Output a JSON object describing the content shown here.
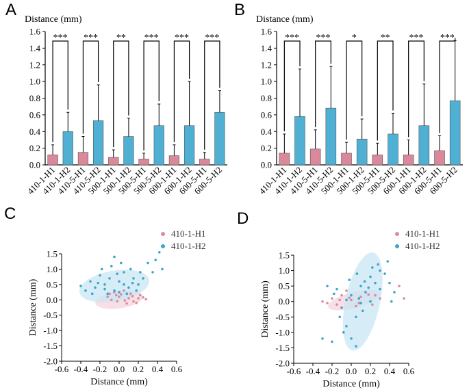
{
  "colors": {
    "h1": "#d9899a",
    "h2": "#4fb0d3",
    "h1_dot": "#d98ca0",
    "h2_dot": "#3aa7c9",
    "h1_ellipse": "#f6d3dc",
    "h2_ellipse": "#c8e6f4"
  },
  "chart_data": [
    {
      "panel": "A",
      "type": "bar",
      "ylabel": "Distance (mm)",
      "ylim": [
        0,
        1.6
      ],
      "yticks": [
        "0.0",
        "0.2",
        "0.4",
        "0.6",
        "0.8",
        "1.0",
        "1.2",
        "1.4",
        "1.6"
      ],
      "categories": [
        "410-1-H1",
        "410-1-H2",
        "410-5-H1",
        "410-5-H2",
        "500-1-H1",
        "500-1-H2",
        "500-5-H1",
        "500-5-H2",
        "600-1-H1",
        "600-1-H2",
        "600-5-H1",
        "600-5-H2"
      ],
      "values": [
        0.12,
        0.4,
        0.15,
        0.53,
        0.09,
        0.34,
        0.07,
        0.47,
        0.11,
        0.47,
        0.07,
        0.63
      ],
      "errors": [
        0.12,
        0.23,
        0.19,
        0.43,
        0.09,
        0.22,
        0.07,
        0.26,
        0.13,
        0.53,
        0.08,
        0.26
      ],
      "significance": [
        "***",
        "***",
        "**",
        "***",
        "***",
        "***"
      ]
    },
    {
      "panel": "B",
      "type": "bar",
      "ylabel": "Distance (mm)",
      "ylim": [
        0,
        1.6
      ],
      "yticks": [
        "0.0",
        "0.2",
        "0.4",
        "0.6",
        "0.8",
        "1.0",
        "1.2",
        "1.4",
        "1.6"
      ],
      "categories": [
        "410-1-H1",
        "410-1-H2",
        "410-5-H1",
        "410-5-H2",
        "500-1-H1",
        "500-1-H2",
        "500-5-H1",
        "500-5-H2",
        "600-1-H1",
        "600-1-H2",
        "600-5-H1",
        "600-5-H2"
      ],
      "values": [
        0.14,
        0.58,
        0.19,
        0.68,
        0.14,
        0.31,
        0.12,
        0.37,
        0.12,
        0.47,
        0.17,
        0.77
      ],
      "errors": [
        0.23,
        0.57,
        0.23,
        0.5,
        0.13,
        0.24,
        0.14,
        0.25,
        0.18,
        0.5,
        0.18,
        0.72
      ],
      "significance": [
        "***",
        "***",
        "*",
        "**",
        "***",
        "***"
      ]
    },
    {
      "panel": "C",
      "type": "scatter",
      "xlabel": "Distance (mm)",
      "ylabel": "Distance (mm)",
      "xlim": [
        -0.6,
        0.6
      ],
      "ylim": [
        -2.0,
        1.5
      ],
      "xticks": [
        "-0.6",
        "-0.4",
        "-0.2",
        "0.0",
        "0.2",
        "0.4",
        "0.6"
      ],
      "yticks": [
        "1.5",
        "1.0",
        "0.5",
        "0.0",
        "-0.5",
        "-1.0",
        "-1.5",
        "-2.0"
      ],
      "legend": [
        "410-1-H1",
        "410-1-H2"
      ],
      "ellipses": [
        {
          "series": "410-1-H1",
          "cx": 0.0,
          "cy": 0.0,
          "rx": 0.25,
          "ry": 0.28,
          "angle": -8
        },
        {
          "series": "410-1-H2",
          "cx": -0.05,
          "cy": 0.45,
          "rx": 0.37,
          "ry": 0.5,
          "angle": -10
        }
      ],
      "series": [
        {
          "name": "410-1-H1",
          "points": [
            [
              -0.05,
              0.25
            ],
            [
              0.02,
              0.18
            ],
            [
              0.1,
              0.05
            ],
            [
              -0.12,
              0.1
            ],
            [
              0.15,
              -0.05
            ],
            [
              0.2,
              0.05
            ],
            [
              -0.02,
              -0.05
            ],
            [
              0.08,
              -0.12
            ],
            [
              0.25,
              0.08
            ],
            [
              0.05,
              0.3
            ],
            [
              -0.08,
              0.0
            ],
            [
              0.12,
              0.2
            ],
            [
              0.18,
              -0.1
            ],
            [
              0.22,
              0.15
            ],
            [
              0.0,
              0.1
            ],
            [
              -0.1,
              0.2
            ],
            [
              0.06,
              -0.02
            ],
            [
              0.28,
              0.02
            ],
            [
              0.14,
              0.12
            ],
            [
              -0.03,
              0.15
            ]
          ]
        },
        {
          "name": "410-1-H2",
          "points": [
            [
              -0.3,
              0.6
            ],
            [
              -0.25,
              0.4
            ],
            [
              -0.2,
              0.8
            ],
            [
              -0.15,
              0.5
            ],
            [
              -0.1,
              0.7
            ],
            [
              -0.05,
              0.3
            ],
            [
              0.0,
              0.6
            ],
            [
              0.05,
              0.9
            ],
            [
              0.1,
              0.4
            ],
            [
              0.15,
              0.7
            ],
            [
              0.2,
              0.5
            ],
            [
              -0.28,
              0.2
            ],
            [
              -0.18,
              1.0
            ],
            [
              -0.08,
              1.1
            ],
            [
              0.02,
              1.2
            ],
            [
              0.12,
              1.0
            ],
            [
              0.22,
              0.9
            ],
            [
              0.3,
              1.2
            ],
            [
              0.38,
              1.3
            ],
            [
              0.45,
              1.0
            ],
            [
              -0.35,
              0.3
            ],
            [
              -0.12,
              0.2
            ],
            [
              0.08,
              0.2
            ],
            [
              0.18,
              0.3
            ],
            [
              -0.22,
              0.55
            ],
            [
              -0.02,
              0.85
            ],
            [
              0.25,
              0.7
            ],
            [
              -0.4,
              0.45
            ],
            [
              0.35,
              0.9
            ],
            [
              0.42,
              1.55
            ],
            [
              -0.05,
              1.4
            ],
            [
              0.05,
              0.5
            ],
            [
              -0.15,
              0.35
            ],
            [
              0.0,
              0.25
            ],
            [
              0.14,
              0.55
            ]
          ]
        }
      ]
    },
    {
      "panel": "D",
      "type": "scatter",
      "xlabel": "Distance (mm)",
      "ylabel": "Distance (mm)",
      "xlim": [
        -0.6,
        0.6
      ],
      "ylim": [
        -2.0,
        1.5
      ],
      "xticks": [
        "-0.6",
        "-0.4",
        "-0.2",
        "0.0",
        "0.2",
        "0.4",
        "0.6"
      ],
      "yticks": [
        "1.5",
        "1.0",
        "0.5",
        "0.0",
        "-0.5",
        "-1.0",
        "-1.5",
        "-2.0"
      ],
      "legend": [
        "410-1-H1",
        "410-1-H2"
      ],
      "ellipses": [
        {
          "series": "410-1-H1",
          "cx": 0.03,
          "cy": 0.05,
          "rx": 0.28,
          "ry": 0.26,
          "angle": -15
        },
        {
          "series": "410-1-H2",
          "cx": 0.12,
          "cy": 0.0,
          "rx": 0.18,
          "ry": 1.62,
          "angle": 12
        }
      ],
      "series": [
        {
          "name": "410-1-H1",
          "points": [
            [
              -0.2,
              0.1
            ],
            [
              -0.1,
              0.2
            ],
            [
              0.0,
              0.05
            ],
            [
              0.1,
              0.15
            ],
            [
              0.2,
              0.0
            ],
            [
              -0.15,
              -0.1
            ],
            [
              0.05,
              -0.15
            ],
            [
              0.25,
              0.2
            ],
            [
              -0.25,
              -0.05
            ],
            [
              0.15,
              0.3
            ],
            [
              -0.05,
              0.35
            ],
            [
              0.3,
              0.1
            ],
            [
              0.55,
              0.1
            ],
            [
              0.5,
              0.5
            ],
            [
              -0.3,
              0.0
            ],
            [
              0.08,
              -0.05
            ],
            [
              -0.02,
              0.12
            ],
            [
              0.18,
              0.22
            ],
            [
              0.22,
              -0.1
            ],
            [
              -0.12,
              0.05
            ]
          ]
        },
        {
          "name": "410-1-H2",
          "points": [
            [
              0.0,
              0.2
            ],
            [
              0.1,
              0.5
            ],
            [
              0.2,
              0.8
            ],
            [
              0.3,
              1.0
            ],
            [
              -0.1,
              -0.2
            ],
            [
              0.05,
              -0.5
            ],
            [
              -0.05,
              -0.8
            ],
            [
              0.15,
              0.3
            ],
            [
              0.25,
              0.6
            ],
            [
              0.35,
              0.9
            ],
            [
              -0.15,
              0.4
            ],
            [
              0.08,
              0.1
            ],
            [
              -0.08,
              -1.0
            ],
            [
              0.0,
              -1.2
            ],
            [
              0.05,
              -1.45
            ],
            [
              -0.2,
              -1.3
            ],
            [
              -0.3,
              -1.2
            ],
            [
              0.4,
              0.6
            ],
            [
              0.45,
              0.3
            ],
            [
              0.2,
              0.0
            ],
            [
              0.12,
              -0.3
            ],
            [
              -0.02,
              0.7
            ],
            [
              0.28,
              1.2
            ],
            [
              0.38,
              1.3
            ],
            [
              -0.25,
              0.5
            ],
            [
              0.18,
              0.45
            ],
            [
              0.1,
              -0.05
            ],
            [
              -0.05,
              0.05
            ],
            [
              0.3,
              0.4
            ],
            [
              -0.12,
              -0.5
            ],
            [
              0.06,
              0.9
            ],
            [
              0.22,
              1.1
            ],
            [
              0.42,
              0.0
            ],
            [
              -0.18,
              0.25
            ],
            [
              0.14,
              0.65
            ]
          ]
        }
      ]
    }
  ]
}
